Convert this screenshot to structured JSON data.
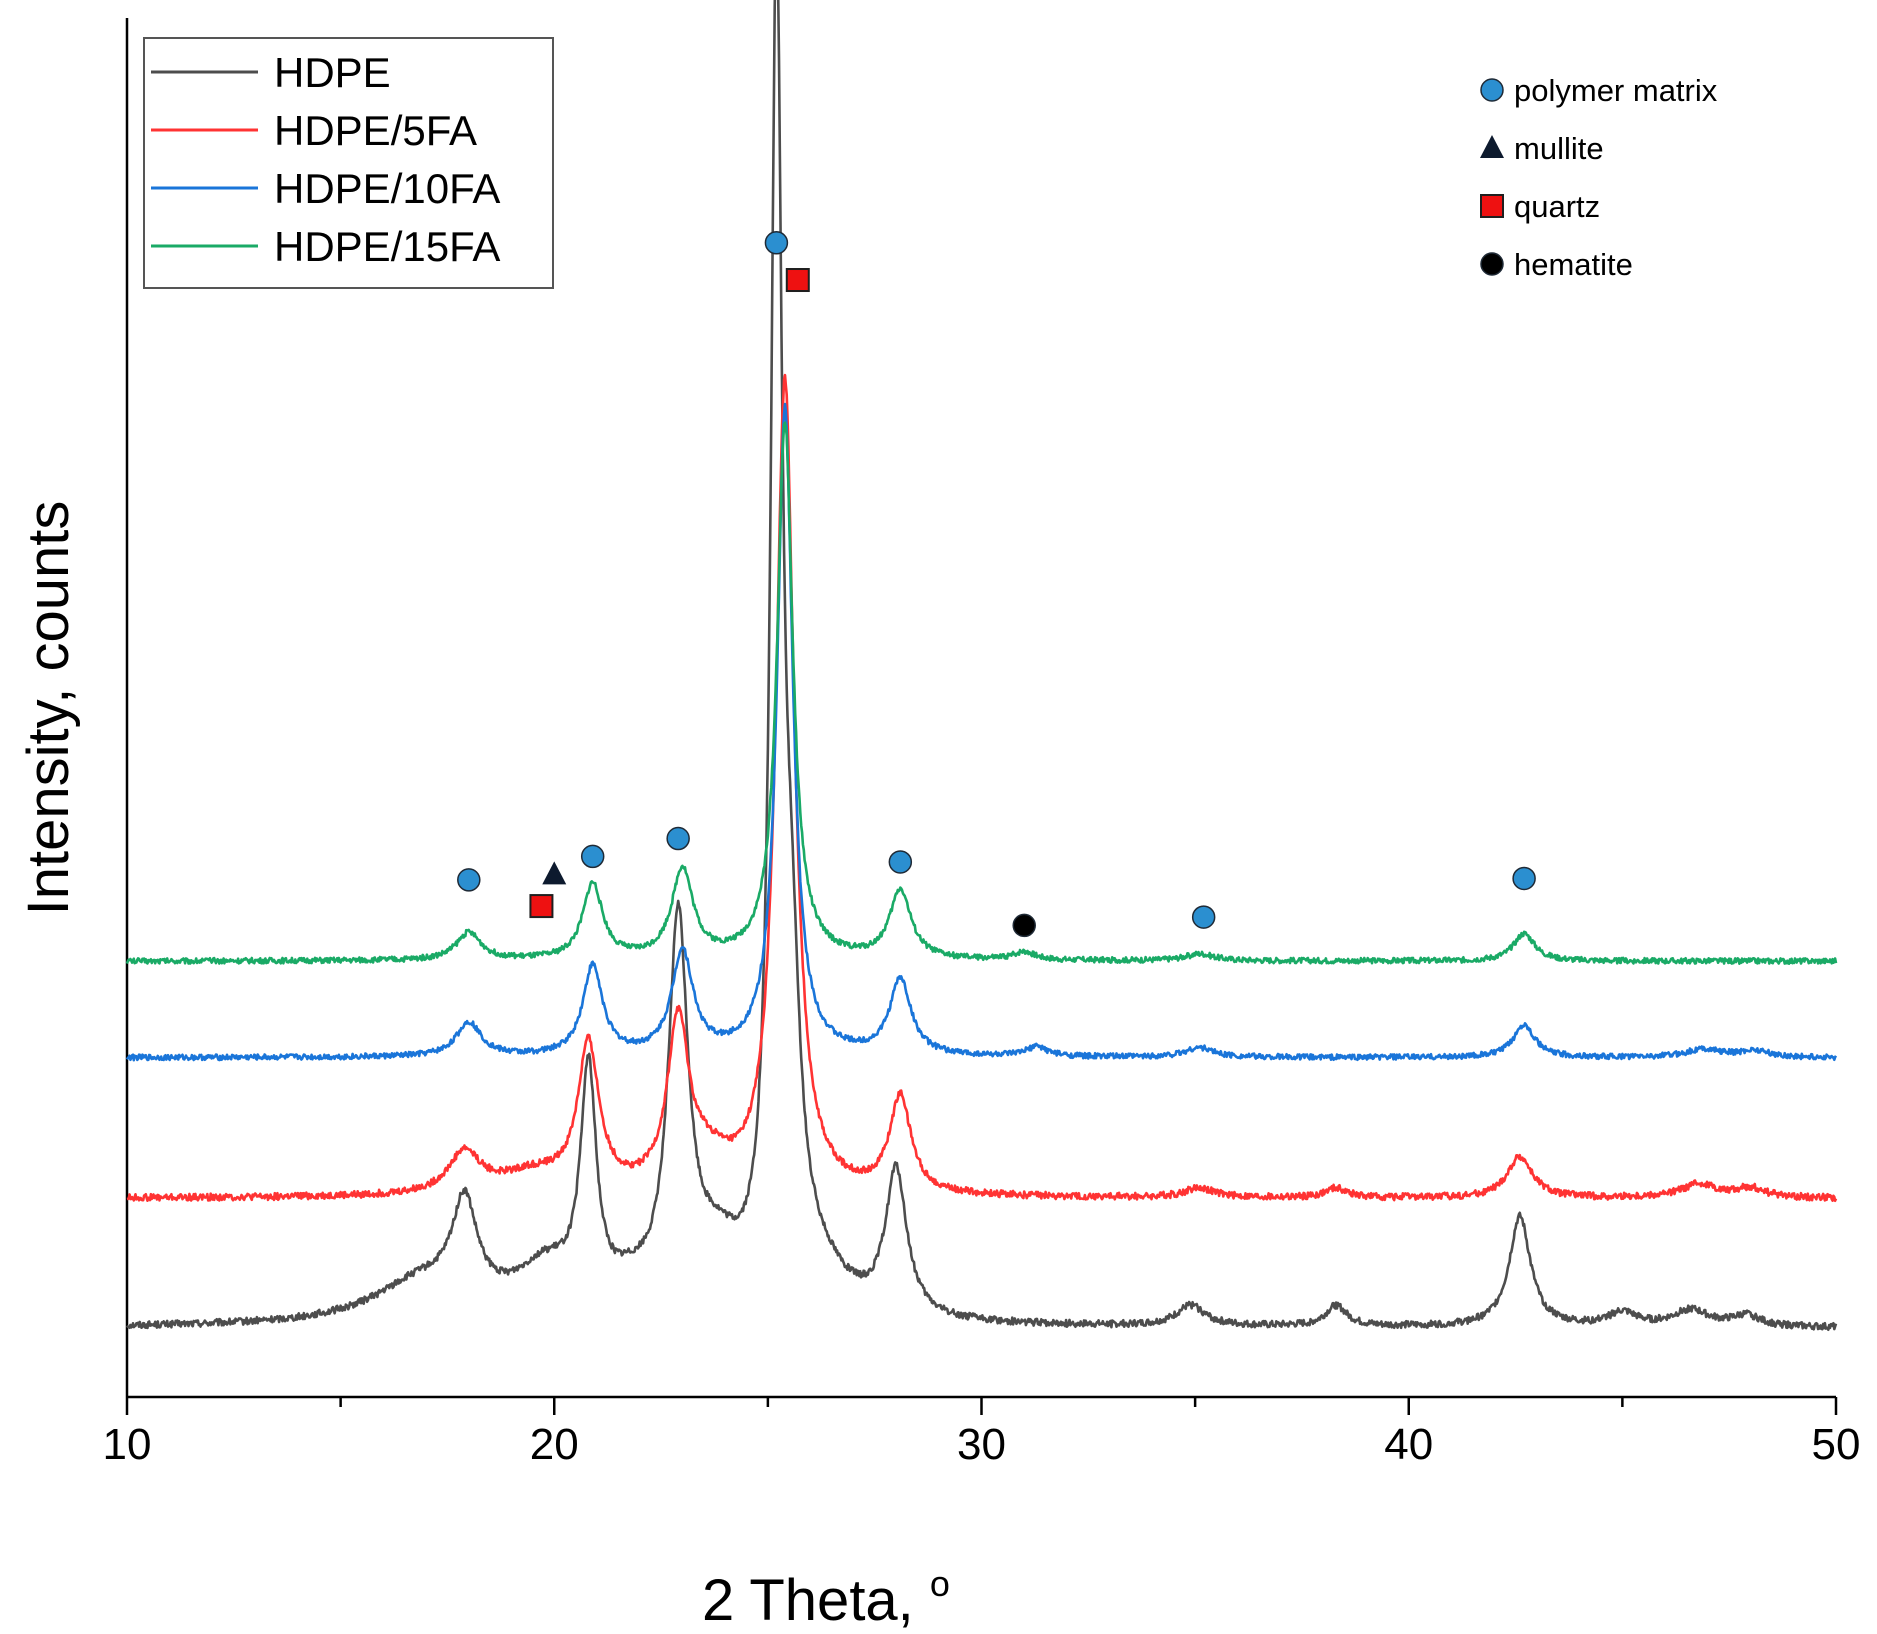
{
  "chart_data": {
    "type": "line",
    "title": "",
    "xlabel": "2 Theta, ",
    "xlabel_sup": "o",
    "ylabel": "Intensity, counts",
    "xlim": [
      10,
      50
    ],
    "ylim": [
      0,
      100
    ],
    "xticks": [
      10,
      20,
      30,
      40,
      50
    ],
    "xtick_labels": [
      "10",
      "20",
      "30",
      "40",
      "50"
    ],
    "y_ticks_shown": false,
    "legend_position": "top-left",
    "series": [
      {
        "name": "HDPE",
        "color": "#4d4d4d",
        "baseline": 5.0,
        "noise": 0.25,
        "peaks": [
          [
            16.9,
            3,
            1.4
          ],
          [
            17.9,
            7,
            0.35
          ],
          [
            19.8,
            3.5,
            0.9
          ],
          [
            20.8,
            16.5,
            0.22
          ],
          [
            21.8,
            1.5,
            0.6
          ],
          [
            22.9,
            27.5,
            0.28
          ],
          [
            23.8,
            4,
            0.7
          ],
          [
            25.2,
            93,
            0.16
          ],
          [
            25.55,
            18,
            0.25
          ],
          [
            26.2,
            3,
            0.8
          ],
          [
            28.0,
            10.5,
            0.3
          ],
          [
            34.9,
            1.5,
            0.4
          ],
          [
            38.3,
            1.5,
            0.3
          ],
          [
            42.6,
            8,
            0.3
          ],
          [
            45.0,
            1,
            0.4
          ],
          [
            46.6,
            1.2,
            0.5
          ],
          [
            47.9,
            0.8,
            0.4
          ]
        ]
      },
      {
        "name": "HDPE/5FA",
        "color": "#ff3333",
        "baseline": 14.4,
        "noise": 0.25,
        "peaks": [
          [
            17.9,
            3,
            0.45
          ],
          [
            19.5,
            1.5,
            1.0
          ],
          [
            20.8,
            10.5,
            0.3
          ],
          [
            22.9,
            12,
            0.3
          ],
          [
            23.6,
            2,
            0.6
          ],
          [
            25.4,
            59,
            0.26
          ],
          [
            28.1,
            7,
            0.3
          ],
          [
            35.1,
            0.7,
            0.4
          ],
          [
            38.3,
            0.7,
            0.3
          ],
          [
            42.6,
            3,
            0.35
          ],
          [
            46.8,
            1,
            0.5
          ],
          [
            48.0,
            0.7,
            0.4
          ]
        ]
      },
      {
        "name": "HDPE/10FA",
        "color": "#1a75d9",
        "baseline": 24.6,
        "noise": 0.2,
        "peaks": [
          [
            18.0,
            2.5,
            0.35
          ],
          [
            20.9,
            6.5,
            0.28
          ],
          [
            23.0,
            7.5,
            0.3
          ],
          [
            25.4,
            47,
            0.22
          ],
          [
            28.1,
            5.5,
            0.3
          ],
          [
            31.3,
            0.7,
            0.3
          ],
          [
            35.1,
            0.7,
            0.4
          ],
          [
            42.7,
            2.4,
            0.3
          ],
          [
            46.9,
            0.6,
            0.5
          ],
          [
            48.1,
            0.5,
            0.4
          ]
        ]
      },
      {
        "name": "HDPE/15FA",
        "color": "#1aaa66",
        "baseline": 31.6,
        "noise": 0.2,
        "peaks": [
          [
            18.0,
            2,
            0.35
          ],
          [
            20.9,
            5.5,
            0.28
          ],
          [
            23.0,
            6.5,
            0.3
          ],
          [
            25.4,
            39,
            0.22
          ],
          [
            28.1,
            5,
            0.3
          ],
          [
            31.0,
            0.6,
            0.3
          ],
          [
            35.1,
            0.5,
            0.4
          ],
          [
            42.7,
            2,
            0.3
          ]
        ]
      }
    ],
    "phase_legend": [
      {
        "label": "polymer matrix",
        "marker": "circle",
        "color": "#2b8fd0"
      },
      {
        "label": "mullite",
        "marker": "triangle",
        "color": "#0d1a2e"
      },
      {
        "label": "quartz",
        "marker": "square",
        "color": "#ee1111"
      },
      {
        "label": "hematite",
        "marker": "circle",
        "color": "#000000"
      }
    ],
    "peak_markers": [
      {
        "x": 18.0,
        "y": 37.5,
        "phase": "polymer matrix"
      },
      {
        "x": 20.9,
        "y": 39.2,
        "phase": "polymer matrix"
      },
      {
        "x": 22.9,
        "y": 40.5,
        "phase": "polymer matrix"
      },
      {
        "x": 25.2,
        "y": 83.7,
        "phase": "polymer matrix"
      },
      {
        "x": 28.1,
        "y": 38.8,
        "phase": "polymer matrix"
      },
      {
        "x": 35.2,
        "y": 34.8,
        "phase": "polymer matrix"
      },
      {
        "x": 42.7,
        "y": 37.6,
        "phase": "polymer matrix"
      },
      {
        "x": 20.0,
        "y": 37.9,
        "phase": "mullite"
      },
      {
        "x": 19.7,
        "y": 35.6,
        "phase": "quartz"
      },
      {
        "x": 25.7,
        "y": 81.0,
        "phase": "quartz"
      },
      {
        "x": 31.0,
        "y": 34.2,
        "phase": "hematite"
      }
    ]
  }
}
